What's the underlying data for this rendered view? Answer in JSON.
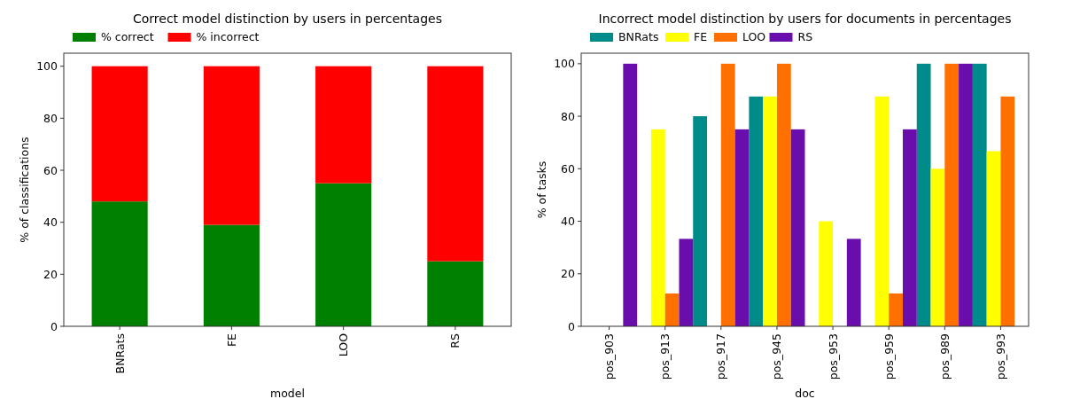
{
  "chart_data": [
    {
      "type": "bar",
      "title": "Correct model distinction by users in percentages",
      "xlabel": "model",
      "ylabel": "% of classifications",
      "categories": [
        "BNRats",
        "FE",
        "LOO",
        "RS"
      ],
      "stacked": true,
      "series": [
        {
          "name": "% correct",
          "color": "#008000",
          "values": [
            48,
            39,
            55,
            25
          ]
        },
        {
          "name": "% incorrect",
          "color": "#ff0000",
          "values": [
            52,
            61,
            45,
            75
          ]
        }
      ],
      "ylim": [
        0,
        105
      ],
      "yticks": [
        0,
        20,
        40,
        60,
        80,
        100
      ],
      "legend": "top",
      "grid": false
    },
    {
      "type": "bar",
      "title": "Incorrect model distinction by users for documents in percentages",
      "xlabel": "doc",
      "ylabel": "% of tasks",
      "categories": [
        "pos_903",
        "pos_913",
        "pos_917",
        "pos_945",
        "pos_953",
        "pos_959",
        "pos_989",
        "pos_993"
      ],
      "series": [
        {
          "name": "BNRats",
          "color": "#008b8b",
          "values": [
            0,
            0,
            80,
            87.5,
            0,
            0,
            100,
            100
          ]
        },
        {
          "name": "FE",
          "color": "#ffff00",
          "values": [
            0,
            75,
            0,
            87.5,
            40,
            87.5,
            60,
            66.7
          ]
        },
        {
          "name": "LOO",
          "color": "#ff7000",
          "values": [
            0,
            12.5,
            100,
            100,
            0,
            12.5,
            100,
            87.5
          ]
        },
        {
          "name": "RS",
          "color": "#6a0dad",
          "values": [
            100,
            33.3,
            75,
            75,
            33.3,
            75,
            100,
            0
          ]
        }
      ],
      "ylim": [
        0,
        104
      ],
      "yticks": [
        0,
        20,
        40,
        60,
        80,
        100
      ],
      "legend": "top",
      "grid": false
    }
  ]
}
